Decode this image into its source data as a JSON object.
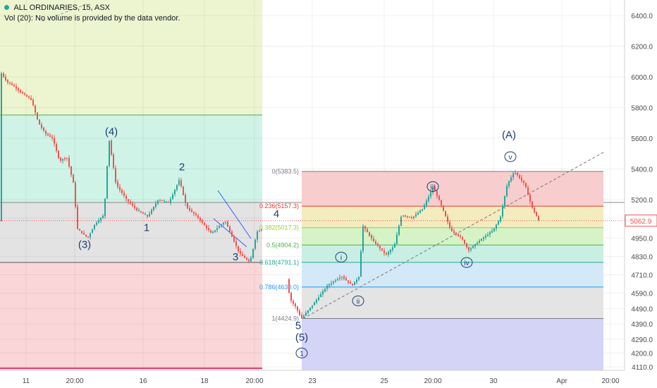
{
  "legend": {
    "symbol": "ALL ORDINARIES, 15, ASX",
    "volume_note": "Vol (20): No volume is provided by the data vendor."
  },
  "chart_data": {
    "type": "candlestick",
    "y_axis": {
      "side": "right",
      "range": [
        4060,
        6500
      ],
      "ticks": [
        4110,
        4200,
        4290,
        4390,
        4490,
        4590,
        4710,
        4830,
        4950,
        5080,
        5200,
        5400,
        5600,
        5800,
        6000,
        6200,
        6400
      ]
    },
    "x_axis": {
      "ticks": [
        "11",
        "20:00",
        "16",
        "18",
        "20:00",
        "23",
        "25",
        "20:00",
        "30",
        "Apr",
        "20:00"
      ]
    },
    "last_price": 5062.9,
    "price_path": [
      [
        0,
        6040
      ],
      [
        10,
        5970
      ],
      [
        20,
        5940
      ],
      [
        30,
        5900
      ],
      [
        45,
        5850
      ],
      [
        55,
        5700
      ],
      [
        65,
        5630
      ],
      [
        75,
        5600
      ],
      [
        85,
        5450
      ],
      [
        95,
        5480
      ],
      [
        105,
        5300
      ],
      [
        110,
        5010
      ],
      [
        125,
        4950
      ],
      [
        135,
        5040
      ],
      [
        148,
        5100
      ],
      [
        155,
        5600
      ],
      [
        165,
        5300
      ],
      [
        180,
        5200
      ],
      [
        195,
        5130
      ],
      [
        210,
        5090
      ],
      [
        225,
        5200
      ],
      [
        240,
        5180
      ],
      [
        255,
        5330
      ],
      [
        265,
        5150
      ],
      [
        280,
        5090
      ],
      [
        300,
        4980
      ],
      [
        320,
        5060
      ],
      [
        340,
        4850
      ],
      [
        355,
        4790
      ],
      [
        365,
        4990
      ],
      [
        385,
        5040
      ],
      [
        400,
        4900
      ],
      [
        412,
        4550
      ],
      [
        420,
        4500
      ],
      [
        428,
        4425
      ],
      [
        445,
        4520
      ],
      [
        465,
        4640
      ],
      [
        485,
        4700
      ],
      [
        500,
        4640
      ],
      [
        510,
        4700
      ],
      [
        515,
        5030
      ],
      [
        530,
        4930
      ],
      [
        548,
        4840
      ],
      [
        560,
        4900
      ],
      [
        570,
        5100
      ],
      [
        585,
        5080
      ],
      [
        600,
        5140
      ],
      [
        615,
        5280
      ],
      [
        625,
        5180
      ],
      [
        640,
        5000
      ],
      [
        655,
        4950
      ],
      [
        665,
        4870
      ],
      [
        680,
        4930
      ],
      [
        700,
        5000
      ],
      [
        710,
        5080
      ],
      [
        720,
        5300
      ],
      [
        730,
        5383
      ],
      [
        745,
        5300
      ],
      [
        755,
        5150
      ],
      [
        765,
        5060
      ]
    ],
    "background_zones": [
      {
        "color": "#ecf5cf"
      },
      {
        "color": "#cff3e6"
      },
      {
        "color": "#e3e3e3"
      },
      {
        "color": "#fbd6d8"
      }
    ],
    "fibonacci": {
      "levels": [
        {
          "label": "0(5383.5)",
          "price": 5383.5,
          "color": "#787b86"
        },
        {
          "label": "0.236(5157.3)",
          "price": 5157.3,
          "color": "#e53935"
        },
        {
          "label": "0.382(5017.3)",
          "price": 5017.3,
          "color": "#9ccc3a"
        },
        {
          "label": "0.5(4904.2)",
          "price": 4904.2,
          "color": "#4caf50"
        },
        {
          "label": "0.618(4791.1)",
          "price": 4791.1,
          "color": "#26a69a"
        },
        {
          "label": "0.786(4630.0)",
          "price": 4630.0,
          "color": "#2196f3"
        },
        {
          "label": "1(4424.9)",
          "price": 4424.9,
          "color": "#787b86"
        }
      ],
      "zone_colors": [
        "#f7cdcd",
        "#f3ecbf",
        "#d6f3c8",
        "#c8efe2",
        "#d3e9f7",
        "#e4e4e4",
        "#d4d4f6"
      ]
    },
    "wave_labels": [
      {
        "text": "(4)",
        "x": 158,
        "y": 5620
      },
      {
        "text": "(3)",
        "x": 120,
        "y": 4885
      },
      {
        "text": "1",
        "x": 208,
        "y": 4995
      },
      {
        "text": "2",
        "x": 258,
        "y": 5390
      },
      {
        "text": "3",
        "x": 334,
        "y": 4805
      },
      {
        "text": "4",
        "x": 392,
        "y": 5085
      },
      {
        "text": "5",
        "x": 423,
        "y": 4355
      },
      {
        "text": "(5)",
        "x": 428,
        "y": 4280
      },
      {
        "text": "(A)",
        "x": 722,
        "y": 5600
      }
    ],
    "circled_labels": [
      {
        "text": "i",
        "x": 484,
        "y": 4825
      },
      {
        "text": "ii",
        "x": 508,
        "y": 4540
      },
      {
        "text": "iii",
        "x": 614,
        "y": 5285
      },
      {
        "text": "iv",
        "x": 662,
        "y": 4790
      },
      {
        "text": "v",
        "x": 724,
        "y": 5480
      },
      {
        "text": "1",
        "x": 428,
        "y": 4200
      }
    ]
  }
}
